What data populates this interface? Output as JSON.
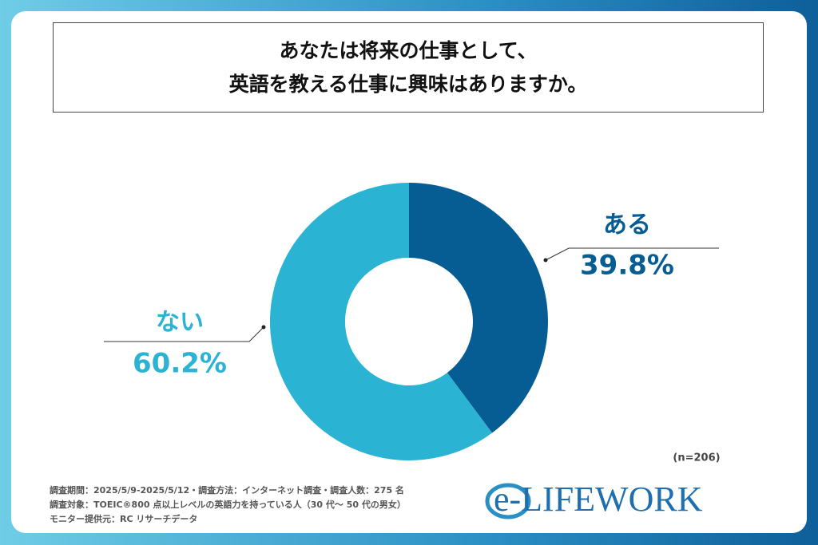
{
  "chart_data": {
    "type": "donut",
    "title": "あなたは将来の仕事として、\n英語を教える仕事に興味はありますか。",
    "categories": [
      "ある",
      "ない"
    ],
    "values": [
      39.8,
      60.2
    ],
    "value_labels": [
      "39.8%",
      "60.2%"
    ],
    "colors": [
      "#055d94",
      "#2bb3d3"
    ],
    "note": "(n=206)"
  },
  "footer": {
    "lines": [
      "調査期間：2025/5/9-2025/5/12・調査方法：インターネット調査・調査人数：275 名",
      "調査対象：TOEIC®800 点以上レベルの英語力を持っている人（30 代～ 50 代の男女）",
      "モニター提供元：RC リサーチデータ"
    ],
    "logo": "e-LIFEWORK"
  }
}
